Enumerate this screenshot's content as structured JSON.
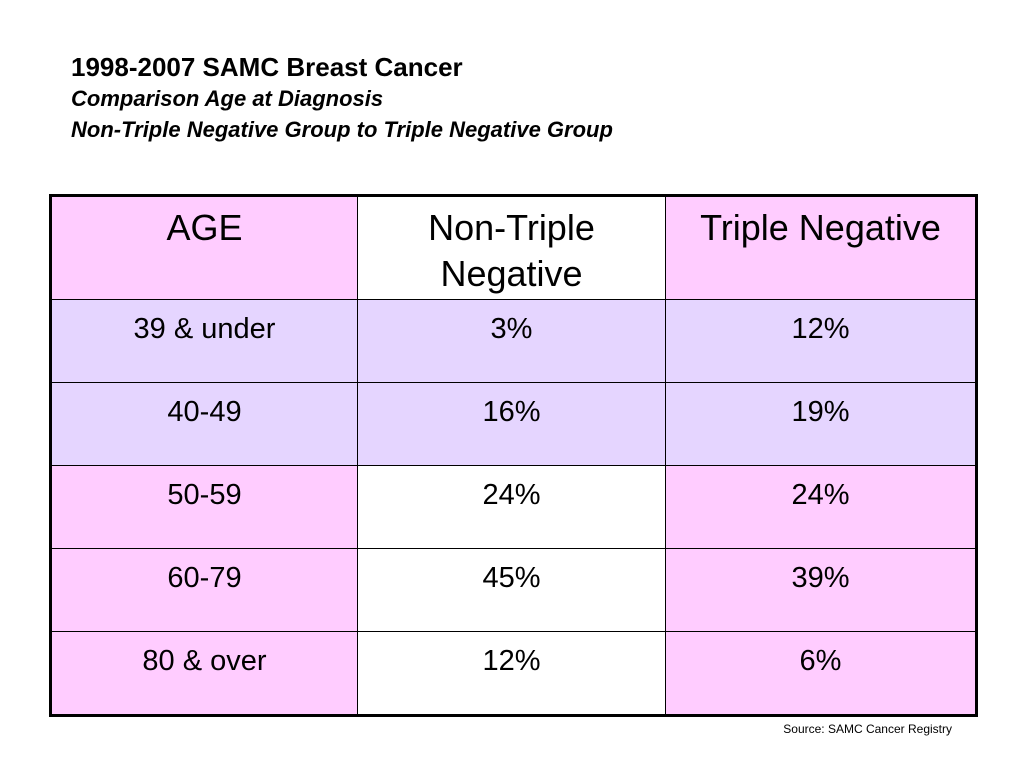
{
  "title": "1998-2007 SAMC Breast Cancer",
  "subtitle_1": "Comparison Age at Diagnosis",
  "subtitle_2": "Non-Triple Negative Group to Triple Negative Group",
  "source": "Source: SAMC Cancer Registry",
  "colors": {
    "pink": "#FFCCFF",
    "lavender": "#E5D5FF",
    "white": "#FFFFFF"
  },
  "chart_data": {
    "type": "table",
    "columns": [
      "AGE",
      "Non-Triple Negative",
      "Triple Negative"
    ],
    "rows": [
      {
        "age": "39 & under",
        "non_triple_negative": "3%",
        "triple_negative": "12%"
      },
      {
        "age": "40-49",
        "non_triple_negative": "16%",
        "triple_negative": "19%"
      },
      {
        "age": "50-59",
        "non_triple_negative": "24%",
        "triple_negative": "24%"
      },
      {
        "age": "60-79",
        "non_triple_negative": "45%",
        "triple_negative": "39%"
      },
      {
        "age": "80 & over",
        "non_triple_negative": "12%",
        "triple_negative": "6%"
      }
    ]
  }
}
